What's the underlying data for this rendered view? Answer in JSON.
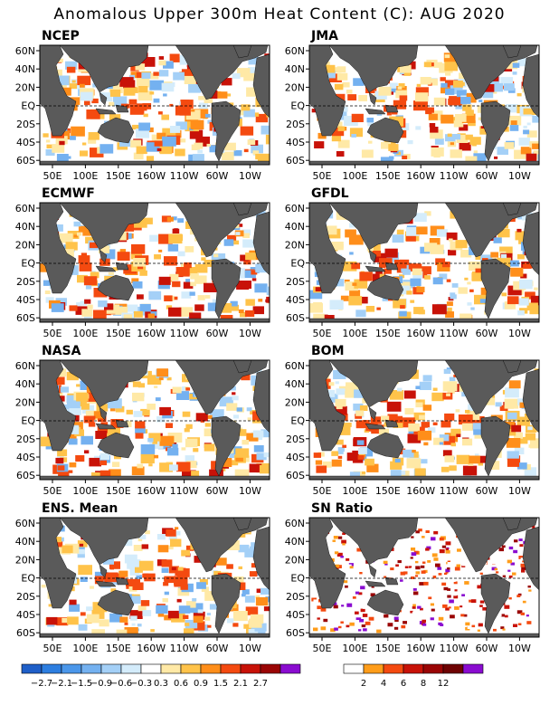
{
  "title": "Anomalous Upper 300m Heat Content (C): AUG 2020",
  "lat_labels": [
    "60N",
    "40N",
    "20N",
    "EQ",
    "20S",
    "40S",
    "60S"
  ],
  "lon_labels": [
    "50E",
    "100E",
    "150E",
    "160W",
    "110W",
    "60W",
    "10W"
  ],
  "panels": [
    {
      "name": "NCEP"
    },
    {
      "name": "JMA"
    },
    {
      "name": "ECMWF"
    },
    {
      "name": "GFDL"
    },
    {
      "name": "NASA"
    },
    {
      "name": "BOM"
    },
    {
      "name": "ENS. Mean"
    },
    {
      "name": "SN Ratio"
    }
  ],
  "colorbar_anomaly": {
    "colors": [
      "#1f5fc8",
      "#2d7ee0",
      "#4b97ea",
      "#74b1f0",
      "#a4d0f7",
      "#d4ecfb",
      "#ffffff",
      "#ffe9a6",
      "#ffc34a",
      "#ff8e1a",
      "#f44a10",
      "#c81208",
      "#9a0505",
      "#8a0cd0"
    ],
    "labels": [
      "−2.7",
      "−2.1",
      "−1.5",
      "−0.9",
      "−0.6",
      "−0.3",
      "0.3",
      "0.6",
      "0.9",
      "1.5",
      "2.1",
      "2.7"
    ]
  },
  "colorbar_snratio": {
    "colors": [
      "#ffffff",
      "#ff9d1a",
      "#f44a10",
      "#c81208",
      "#9a0505",
      "#6e0303",
      "#8a0cd0"
    ],
    "labels": [
      "2",
      "4",
      "6",
      "8",
      "12"
    ]
  },
  "colors": {
    "land": "#5a5a5a",
    "ocean": "#ffffff"
  }
}
